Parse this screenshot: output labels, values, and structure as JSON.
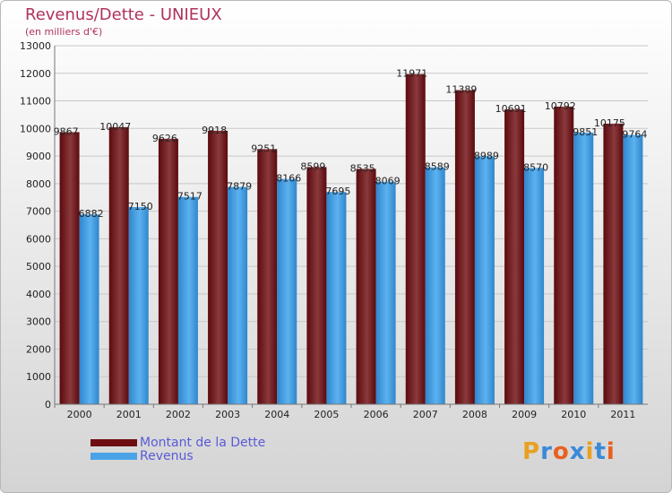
{
  "header": {
    "title": "Revenus/Dette - UNIEUX",
    "subtitle": "(en milliers d'€)"
  },
  "logo": {
    "text": "Proxiti"
  },
  "colors": {
    "dette": "#6e0e12",
    "revenus": "#4aa3e6"
  },
  "chart_data": {
    "type": "bar",
    "categories": [
      "2000",
      "2001",
      "2002",
      "2003",
      "2004",
      "2005",
      "2006",
      "2007",
      "2008",
      "2009",
      "2010",
      "2011"
    ],
    "series": [
      {
        "name": "Montant de la Dette",
        "values": [
          9867,
          10047,
          9626,
          9918,
          9251,
          8599,
          8535,
          11971,
          11389,
          10691,
          10792,
          10175
        ]
      },
      {
        "name": "Revenus",
        "values": [
          6882,
          7150,
          7517,
          7879,
          8166,
          7695,
          8069,
          8589,
          8989,
          8570,
          9851,
          9764
        ]
      }
    ],
    "ylim": [
      0,
      13000
    ],
    "yticks": [
      0,
      1000,
      2000,
      3000,
      4000,
      5000,
      6000,
      7000,
      8000,
      9000,
      10000,
      11000,
      12000,
      13000
    ],
    "grid": true,
    "legend": "bottom-left"
  }
}
